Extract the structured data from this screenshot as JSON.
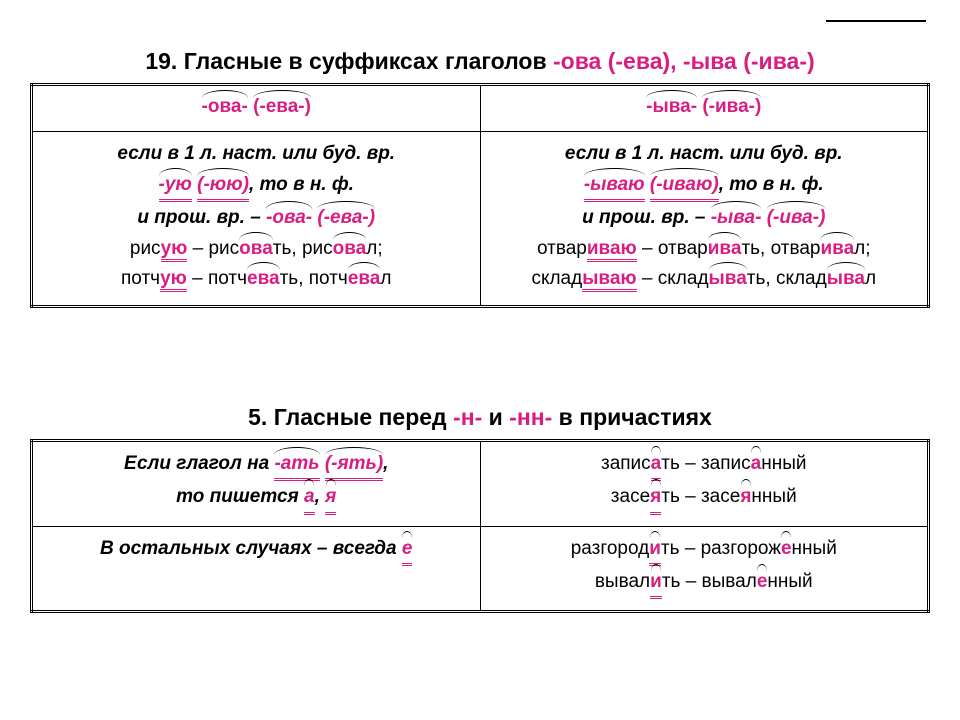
{
  "colors": {
    "magenta": "#d91e82",
    "text": "#000000",
    "bg": "#ffffff"
  },
  "font": {
    "family": "Arial",
    "title_size": 23,
    "cell_size": 19,
    "header_size": 21
  },
  "table1": {
    "title_plain": "19. Гласные в суффиксах глаголов ",
    "title_suffix": "-ова (-ева), -ыва (-ива-)",
    "head_left_a": "-ова-",
    "head_left_b": "(-ева-)",
    "head_right_a": "-ыва-",
    "head_right_b": "(-ива-)",
    "left_line1": "если в 1 л. наст. или буд. вр.",
    "left_suf1a": "-ую",
    "left_suf1b": "(-юю)",
    "left_mid": ", то в н. ф.",
    "left_line3a": "и прош. вр. – ",
    "left_suf3a": "-ова-",
    "left_suf3b": "(-ева-)",
    "left_ex1": "рисую – рисовать, рисовал;",
    "left_ex2": "потчую – потчевать, потчевал",
    "right_line1": "если в 1 л. наст. или буд. вр.",
    "right_suf1a": "-ываю",
    "right_suf1b": "(-иваю)",
    "right_mid": ", то в н. ф.",
    "right_line3a": "и прош. вр. – ",
    "right_suf3a": "-ыва-",
    "right_suf3b": "(-ива-)",
    "right_ex1": "отвариваю – отваривать, отваривал;",
    "right_ex2": "складываю – складывать, складывал"
  },
  "table2": {
    "title_plain": "5. Гласные перед ",
    "title_s1": "-н-",
    "title_mid": " и ",
    "title_s2": "-нн-",
    "title_end": " в причастиях",
    "l1a": "Если глагол на ",
    "l1s1": "-ать",
    "l1s2": "(-ять)",
    "l1b": ",",
    "l2a": "то пишется ",
    "l2s1": "а",
    "l2s2": "я",
    "r1": "записать – записанный",
    "r2": "засеять – засеянный",
    "l3a": "В остальных случаях – всегда ",
    "l3s": "е",
    "r3": "разгородить – разгороженный",
    "r4": "вывалить – вываленный"
  }
}
